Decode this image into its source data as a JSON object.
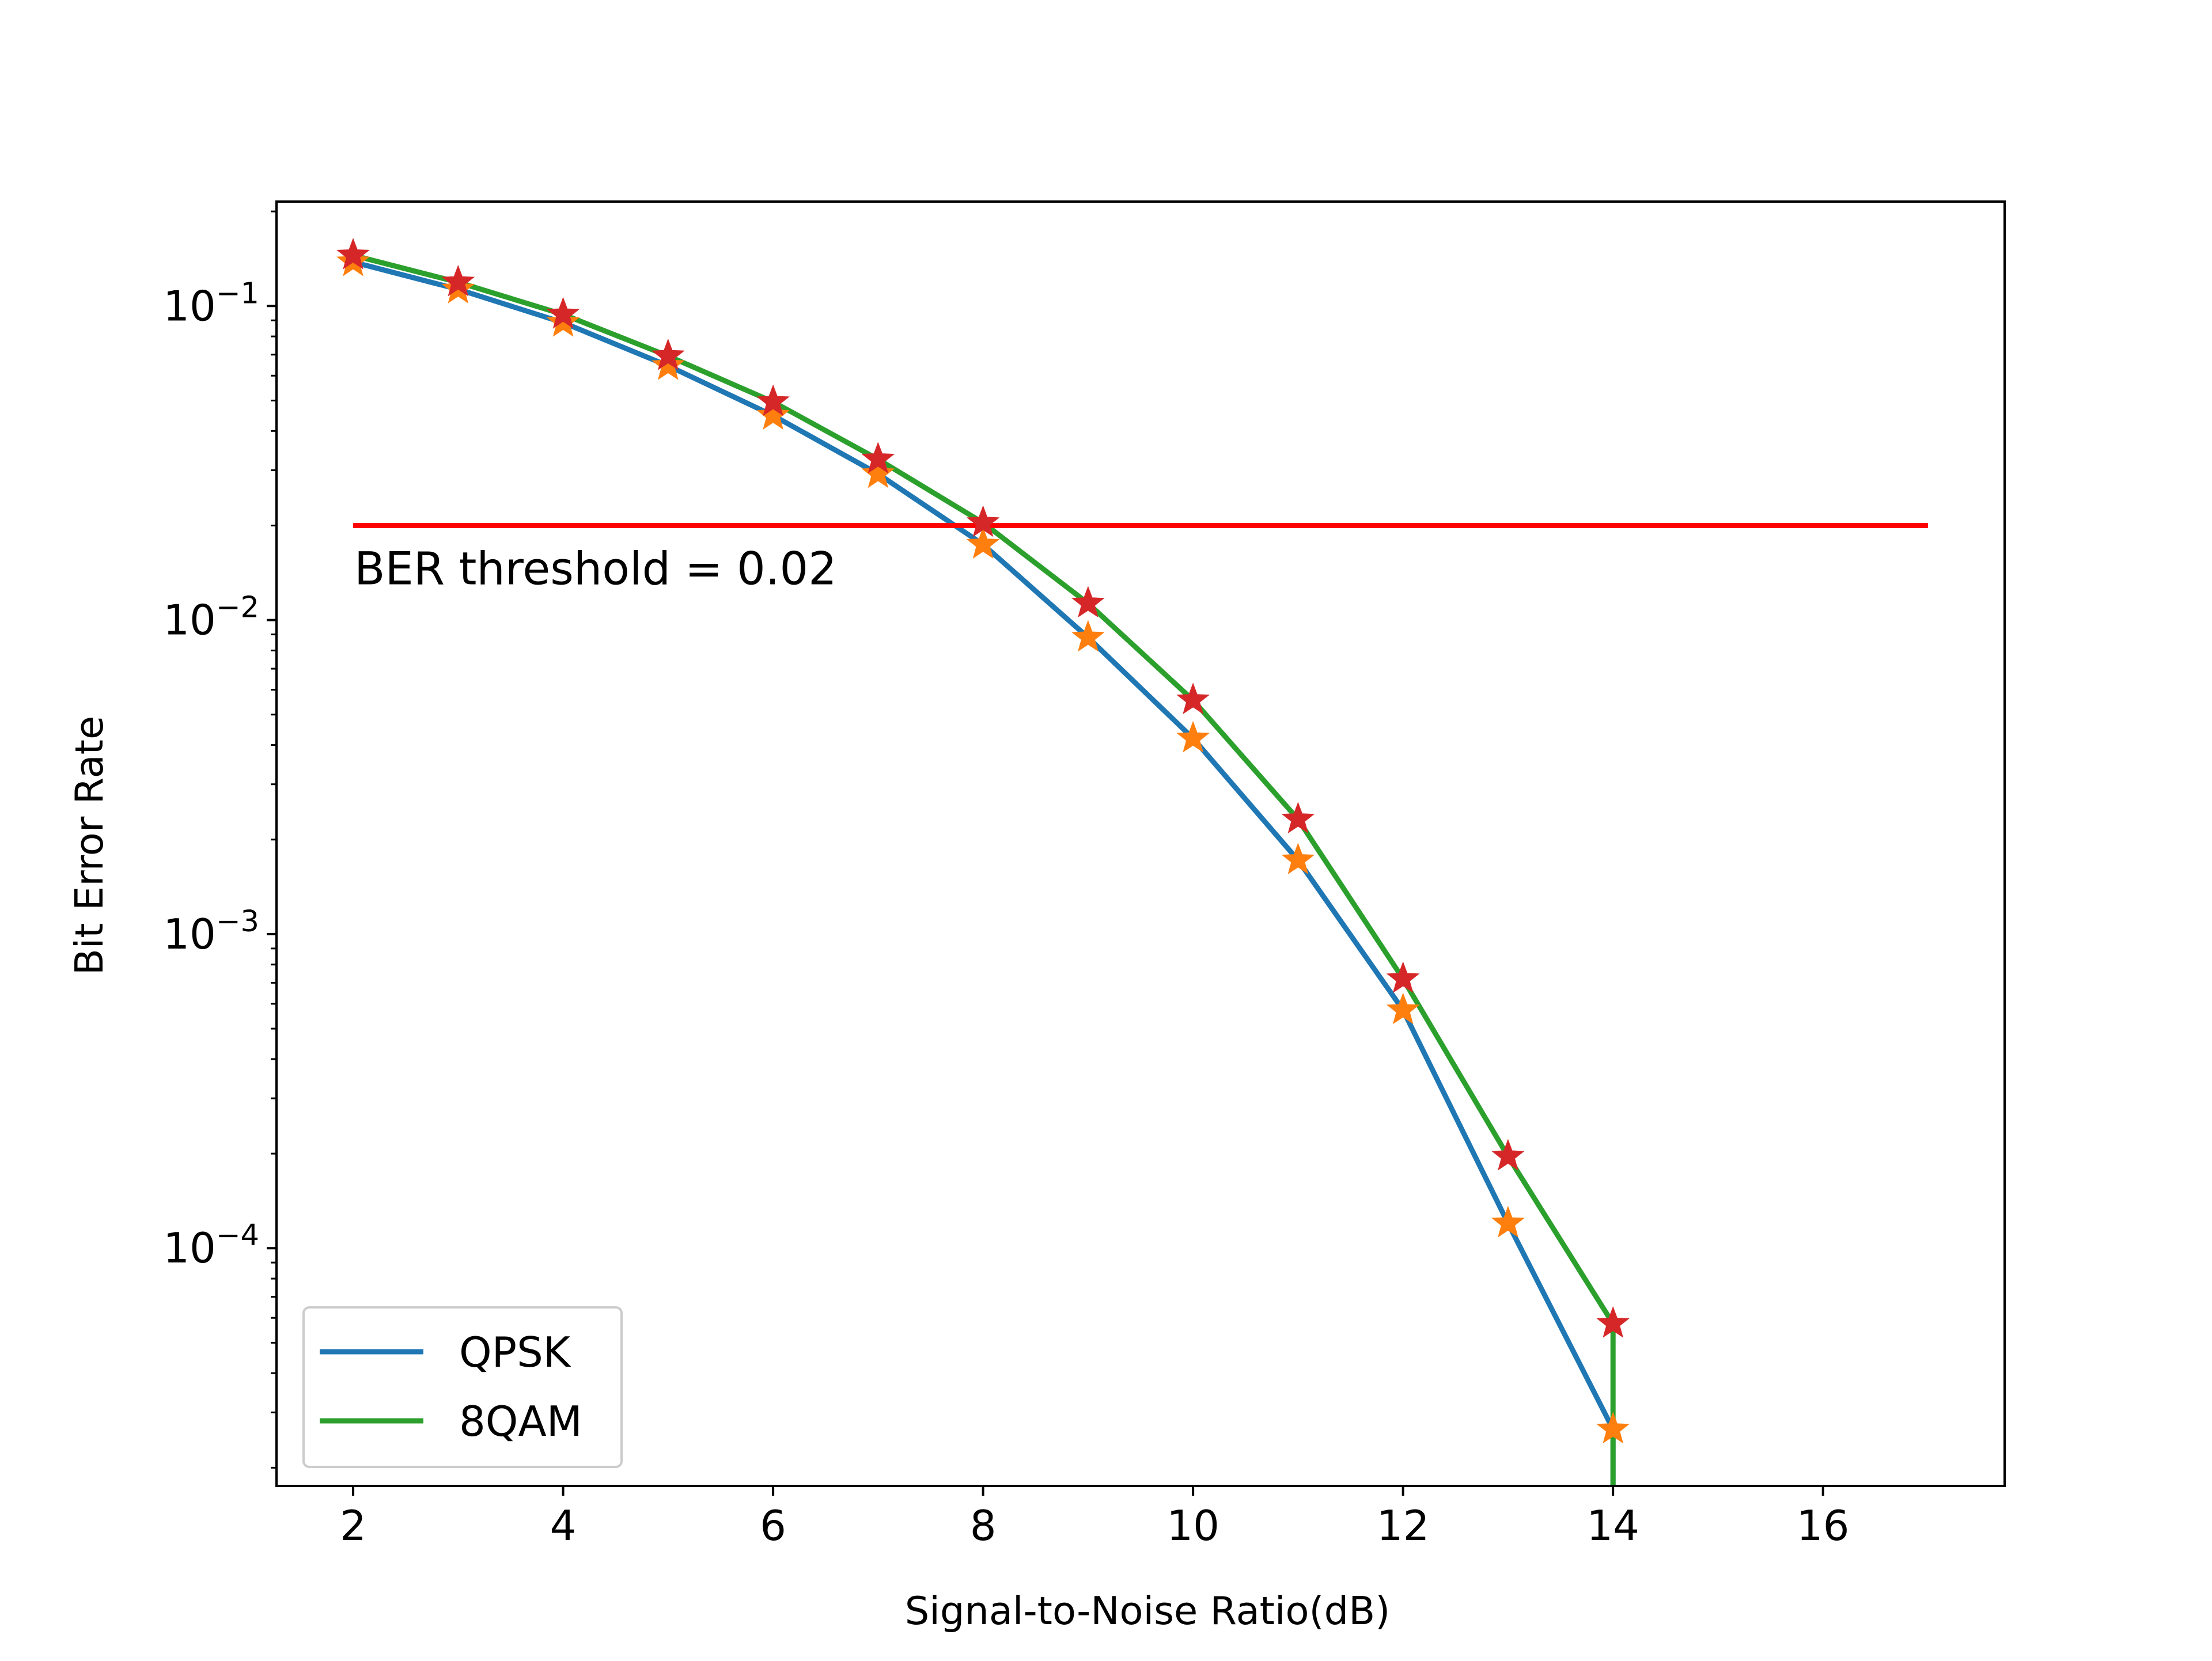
{
  "chart_data": {
    "type": "line",
    "xlabel": "Signal-to-Noise Ratio(dB)",
    "ylabel": "Bit Error Rate",
    "xlim": [
      1.27,
      17.73
    ],
    "ylim": [
      1.75e-05,
      0.215
    ],
    "yscale": "log",
    "grid": false,
    "legend_position": "lower-left",
    "x_ticks": [
      2,
      4,
      6,
      8,
      10,
      12,
      14,
      16
    ],
    "x_tick_labels": [
      "2",
      "4",
      "6",
      "8",
      "10",
      "12",
      "14",
      "16"
    ],
    "y_ticks": [
      0.1,
      0.01,
      0.001,
      0.0001
    ],
    "y_tick_labels": [
      {
        "base": "10",
        "exp": "−1"
      },
      {
        "base": "10",
        "exp": "−2"
      },
      {
        "base": "10",
        "exp": "−3"
      },
      {
        "base": "10",
        "exp": "−4"
      }
    ],
    "series": [
      {
        "name": "QPSK",
        "color": "#1f77b4",
        "marker": "star",
        "marker_color": "#ff7f0e",
        "x": [
          2,
          3,
          4,
          5,
          6,
          7,
          8,
          9,
          10,
          11,
          12,
          13,
          14,
          14
        ],
        "y": [
          0.138,
          0.113,
          0.0885,
          0.0645,
          0.0448,
          0.0292,
          0.0174,
          0.0088,
          0.0042,
          0.00172,
          0.000573,
          0.00012,
          2.65e-05,
          1.75e-05
        ]
      },
      {
        "name": "8QAM",
        "color": "#2ca02c",
        "marker": "star",
        "marker_color": "#d62728",
        "x": [
          2,
          3,
          4,
          5,
          6,
          7,
          8,
          9,
          10,
          11,
          12,
          13,
          14,
          14
        ],
        "y": [
          0.145,
          0.119,
          0.094,
          0.0693,
          0.0495,
          0.0325,
          0.0204,
          0.0113,
          0.00556,
          0.00232,
          0.00072,
          0.000196,
          5.75e-05,
          1.75e-05
        ]
      }
    ],
    "threshold": {
      "y": 0.02,
      "x_start": 2,
      "x_end": 17,
      "color": "#ff0000",
      "label": "BER threshold = 0.02"
    }
  }
}
